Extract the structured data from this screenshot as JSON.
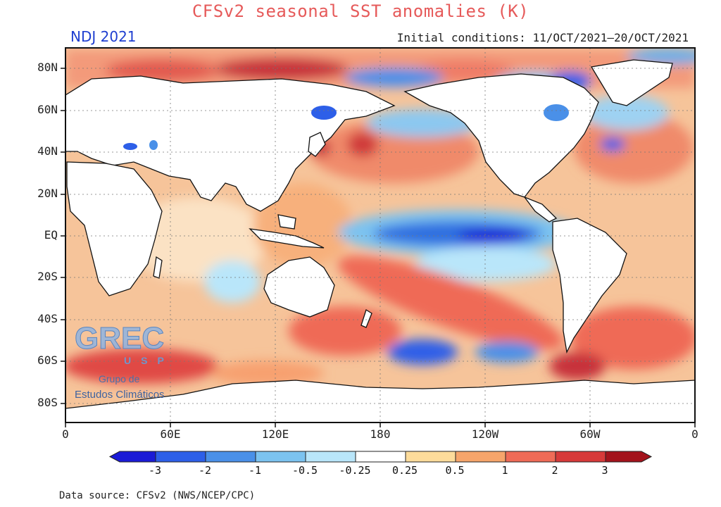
{
  "title": "CFSv2 seasonal SST anomalies (K)",
  "season": "NDJ 2021",
  "initial_conditions": "Initial conditions: 11/OCT/2021–20/OCT/2021",
  "lat_labels": [
    "80N",
    "60N",
    "40N",
    "20N",
    "EQ",
    "20S",
    "40S",
    "60S",
    "80S"
  ],
  "lon_labels": [
    "0",
    "60E",
    "120E",
    "180",
    "120W",
    "60W",
    "0"
  ],
  "colorbar": {
    "labels": [
      "-3",
      "-2",
      "-1",
      "-0.5",
      "-0.25",
      "0.25",
      "0.5",
      "1",
      "2",
      "3"
    ],
    "colors": [
      "#1b1bd6",
      "#2d5fe8",
      "#4a90e8",
      "#7cc3f0",
      "#b9e6fa",
      "#ffffff",
      "#fddc9b",
      "#f6a56b",
      "#ef6b57",
      "#d73a3a",
      "#a3131c"
    ]
  },
  "data_source": "Data source: CFSv2 (NWS/NCEP/CPC)",
  "logo": {
    "main": "GREC",
    "sub": "USP",
    "line1": "Grupo de",
    "line2": "Estudos Climáticos"
  }
}
